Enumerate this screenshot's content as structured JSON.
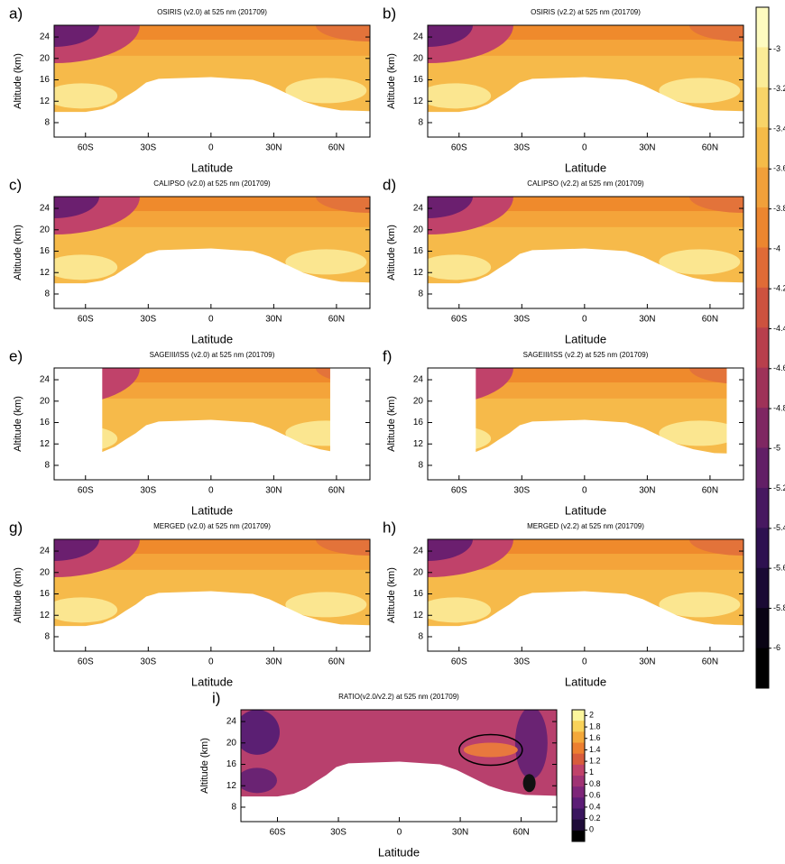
{
  "chart_data": [
    {
      "type": "contour",
      "panel_label": "a)",
      "title": "OSIRIS (v2.0) at 525 nm (201709)",
      "x_label": "Latitude",
      "y_label": "Altitude (km)",
      "xlim": [
        -75,
        76
      ],
      "ylim": [
        5.3,
        26.2
      ],
      "xticks": [
        {
          "value": -60,
          "label": "60S"
        },
        {
          "value": -30,
          "label": "30S"
        },
        0,
        {
          "value": 30,
          "label": "30N"
        },
        {
          "value": 60,
          "label": "60N"
        }
      ],
      "yticks": [
        8,
        12,
        16,
        20,
        24
      ]
    },
    {
      "type": "contour",
      "panel_label": "b)",
      "title": "OSIRIS (v2.2) at 525 nm (201709)",
      "x_label": "Latitude",
      "y_label": "Altitude (km)",
      "xlim": [
        -75,
        76
      ],
      "ylim": [
        5.3,
        26.2
      ],
      "xticks": [
        {
          "value": -60,
          "label": "60S"
        },
        {
          "value": -30,
          "label": "30S"
        },
        0,
        {
          "value": 30,
          "label": "30N"
        },
        {
          "value": 60,
          "label": "60N"
        }
      ],
      "yticks": [
        8,
        12,
        16,
        20,
        24
      ]
    },
    {
      "type": "contour",
      "panel_label": "c)",
      "title": "CALIPSO (v2.0) at 525 nm (201709)",
      "x_label": "Latitude",
      "y_label": "Altitude (km)",
      "xlim": [
        -75,
        76
      ],
      "ylim": [
        5.3,
        26.2
      ],
      "xticks": [
        {
          "value": -60,
          "label": "60S"
        },
        {
          "value": -30,
          "label": "30S"
        },
        0,
        {
          "value": 30,
          "label": "30N"
        },
        {
          "value": 60,
          "label": "60N"
        }
      ],
      "yticks": [
        8,
        12,
        16,
        20,
        24
      ]
    },
    {
      "type": "contour",
      "panel_label": "d)",
      "title": "CALIPSO (v2.2) at 525 nm (201709)",
      "x_label": "Latitude",
      "y_label": "Altitude (km)",
      "xlim": [
        -75,
        76
      ],
      "ylim": [
        5.3,
        26.2
      ],
      "xticks": [
        {
          "value": -60,
          "label": "60S"
        },
        {
          "value": -30,
          "label": "30S"
        },
        0,
        {
          "value": 30,
          "label": "30N"
        },
        {
          "value": 60,
          "label": "60N"
        }
      ],
      "yticks": [
        8,
        12,
        16,
        20,
        24
      ]
    },
    {
      "type": "contour",
      "panel_label": "e)",
      "title": "SAGEIII/ISS (v2.0) at 525 nm (201709)",
      "x_label": "Latitude",
      "y_label": "Altitude (km)",
      "xlim": [
        -75,
        76
      ],
      "ylim": [
        5.3,
        26.2
      ],
      "xticks": [
        {
          "value": -60,
          "label": "60S"
        },
        {
          "value": -30,
          "label": "30S"
        },
        0,
        {
          "value": 30,
          "label": "30N"
        },
        {
          "value": 60,
          "label": "60N"
        }
      ],
      "yticks": [
        8,
        12,
        16,
        20,
        24
      ]
    },
    {
      "type": "contour",
      "panel_label": "f)",
      "title": "SAGEIII/ISS (v2.2) at 525 nm (201709)",
      "x_label": "Latitude",
      "y_label": "Altitude (km)",
      "xlim": [
        -75,
        76
      ],
      "ylim": [
        5.3,
        26.2
      ],
      "xticks": [
        {
          "value": -60,
          "label": "60S"
        },
        {
          "value": -30,
          "label": "30S"
        },
        0,
        {
          "value": 30,
          "label": "30N"
        },
        {
          "value": 60,
          "label": "60N"
        }
      ],
      "yticks": [
        8,
        12,
        16,
        20,
        24
      ]
    },
    {
      "type": "contour",
      "panel_label": "g)",
      "title": "MERGED (v2.0) at 525 nm (201709)",
      "x_label": "Latitude",
      "y_label": "Altitude (km)",
      "xlim": [
        -75,
        76
      ],
      "ylim": [
        5.3,
        26.2
      ],
      "xticks": [
        {
          "value": -60,
          "label": "60S"
        },
        {
          "value": -30,
          "label": "30S"
        },
        0,
        {
          "value": 30,
          "label": "30N"
        },
        {
          "value": 60,
          "label": "60N"
        }
      ],
      "yticks": [
        8,
        12,
        16,
        20,
        24
      ]
    },
    {
      "type": "contour",
      "panel_label": "h)",
      "title": "MERGED (v2.2) at 525 nm (201709)",
      "x_label": "Latitude",
      "y_label": "Altitude (km)",
      "xlim": [
        -75,
        76
      ],
      "ylim": [
        5.3,
        26.2
      ],
      "xticks": [
        {
          "value": -60,
          "label": "60S"
        },
        {
          "value": -30,
          "label": "30S"
        },
        0,
        {
          "value": 30,
          "label": "30N"
        },
        {
          "value": 60,
          "label": "60N"
        }
      ],
      "yticks": [
        8,
        12,
        16,
        20,
        24
      ]
    },
    {
      "type": "contour",
      "panel_label": "i)",
      "title": "RATIO(v2.0/v2.2) at 525 nm (201709)",
      "x_label": "Latitude",
      "y_label": "Altitude (km)",
      "xlim": [
        -78,
        77.5
      ],
      "ylim": [
        5.3,
        26.2
      ],
      "xticks": [
        {
          "value": -60,
          "label": "60S"
        },
        {
          "value": -30,
          "label": "30S"
        },
        0,
        {
          "value": 30,
          "label": "30N"
        },
        {
          "value": 60,
          "label": "60N"
        }
      ],
      "yticks": [
        8,
        12,
        16,
        20,
        24
      ],
      "colorbar": {
        "lim": [
          -0.2,
          2.1
        ],
        "ticks": [
          2,
          1.8,
          1.6,
          1.4,
          1.2,
          1,
          0.8,
          0.6,
          0.4,
          0.2,
          0
        ]
      }
    }
  ],
  "colorbar": {
    "lim": [
      -6.2,
      -2.79
    ],
    "ticks": [
      -3,
      -3.2,
      -3.4,
      -3.6,
      -3.8,
      -4,
      -4.2,
      -4.4,
      -4.6,
      -4.8,
      -5,
      -5.2,
      -5.4,
      -5.6,
      -5.8,
      -6
    ]
  }
}
